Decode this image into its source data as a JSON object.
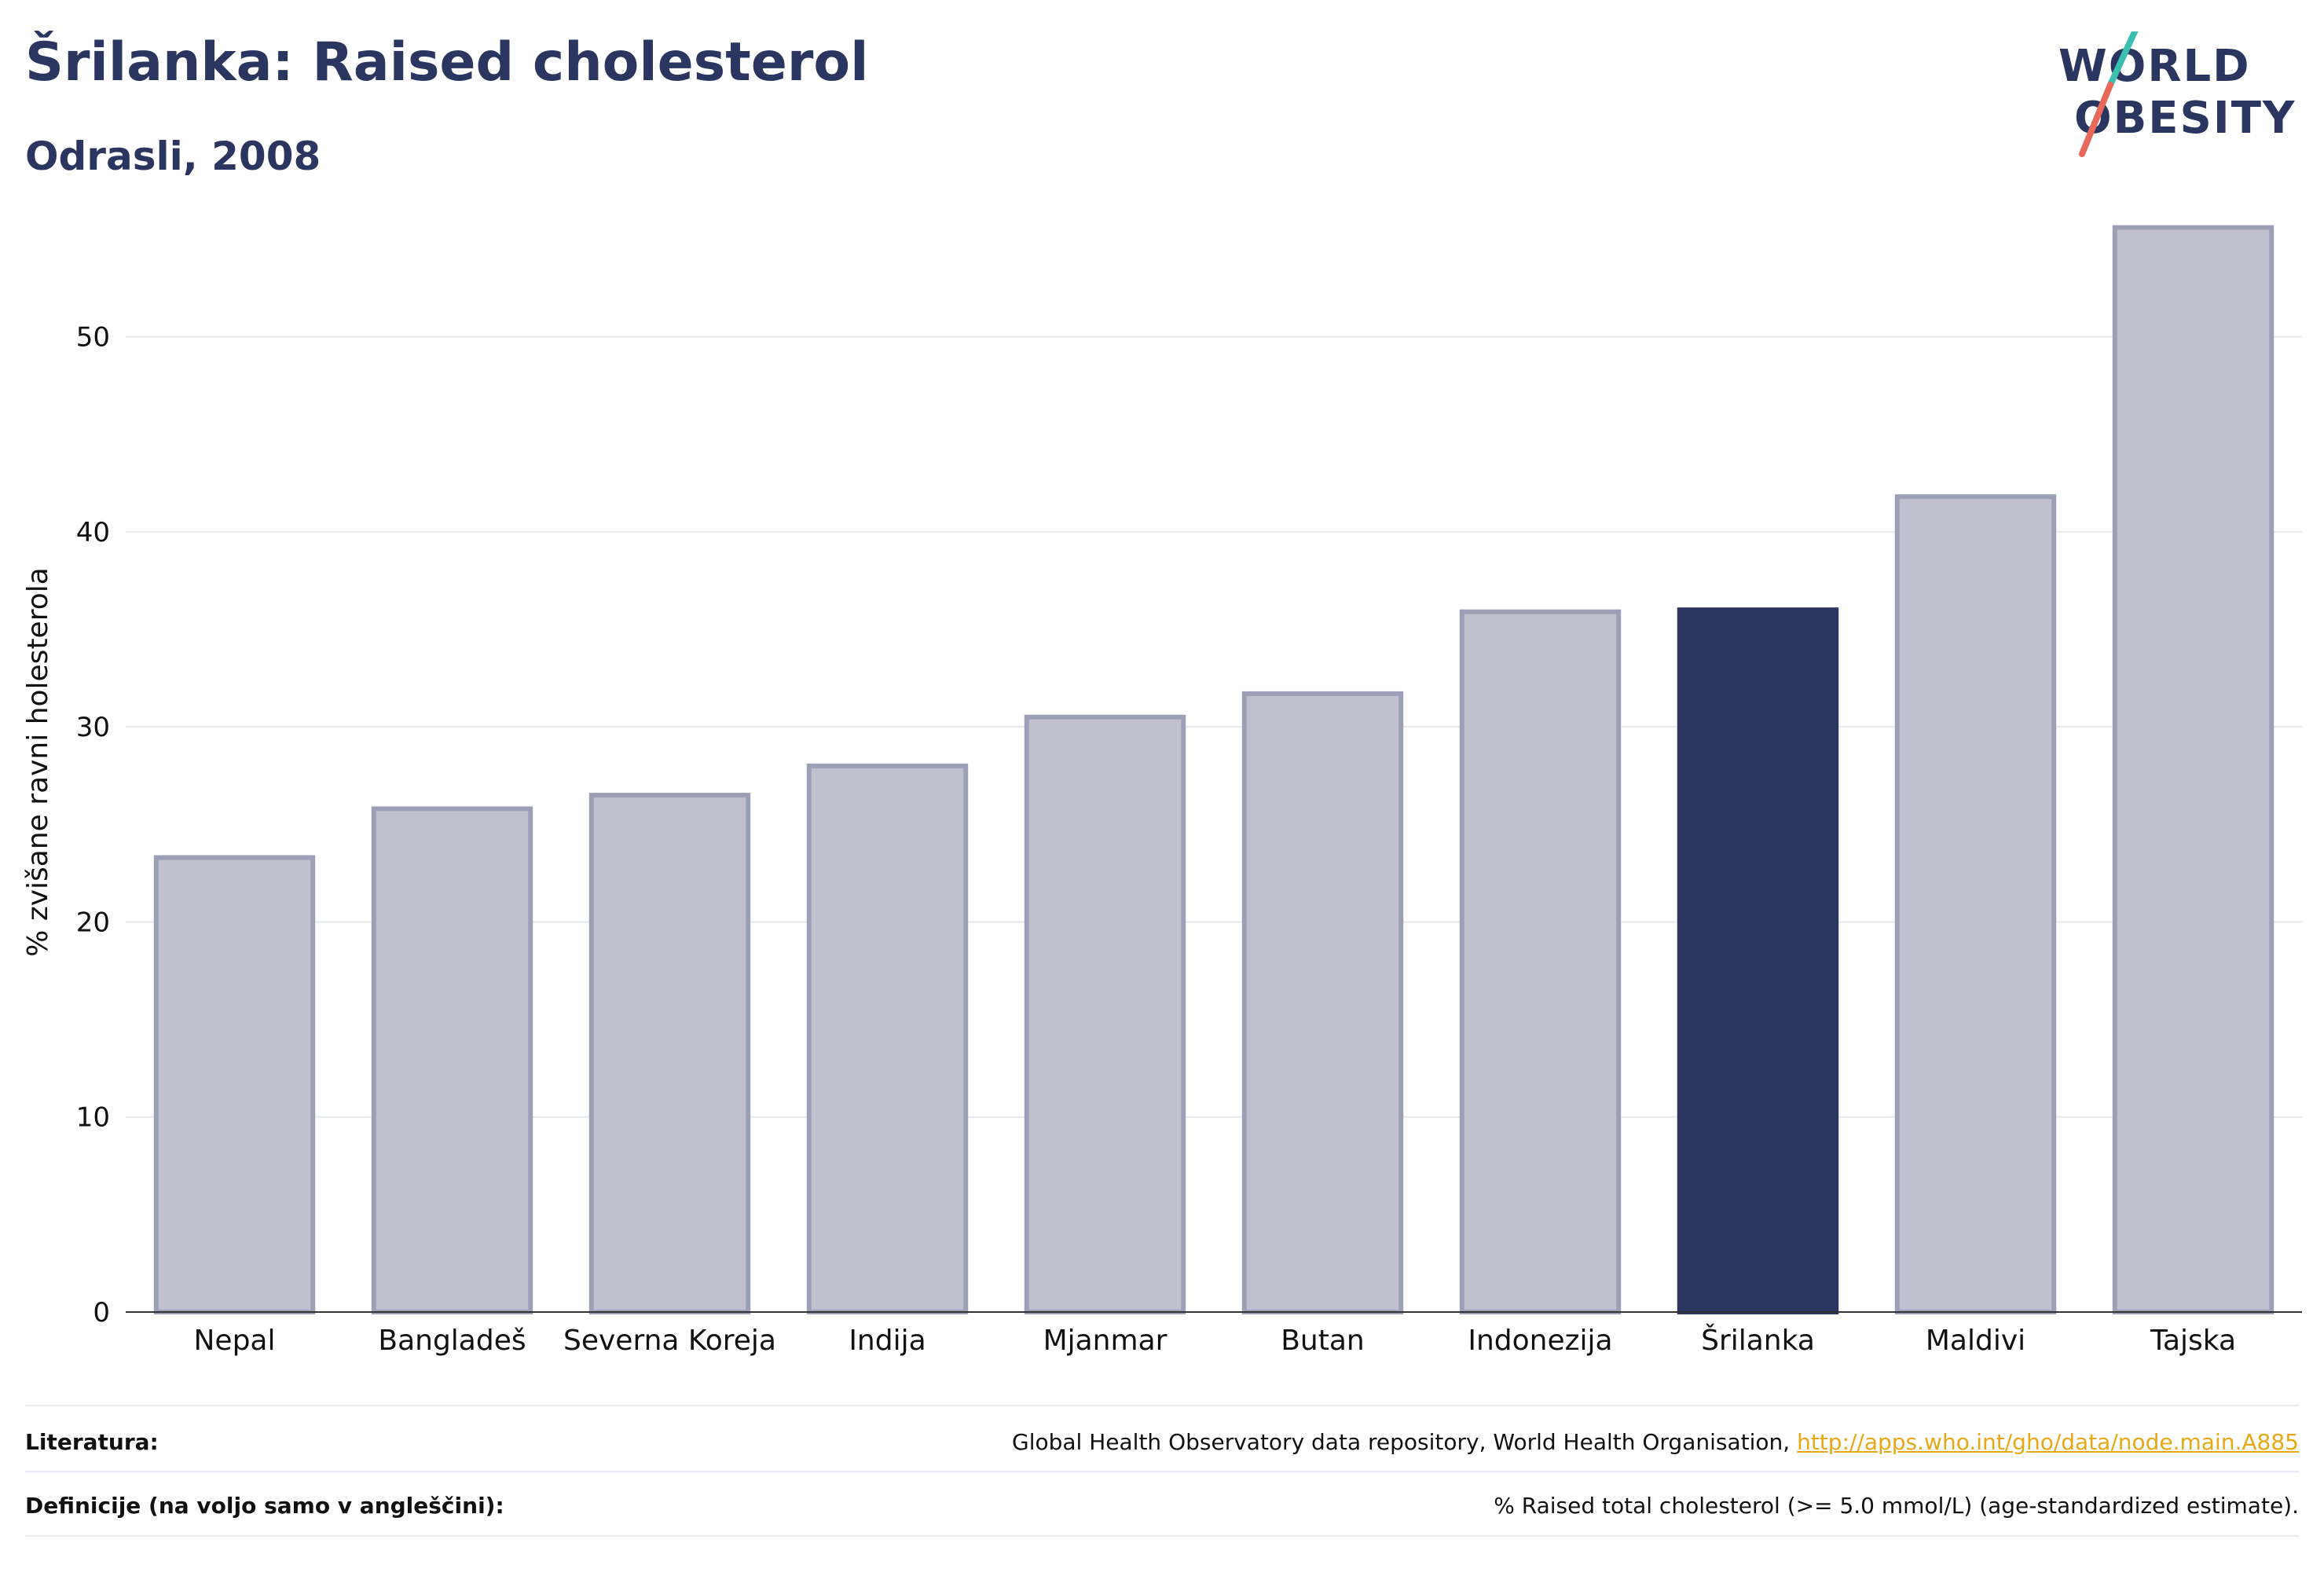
{
  "header": {
    "title": "Šrilanka: Raised cholesterol",
    "subtitle": "Odrasli, 2008"
  },
  "logo": {
    "line1": "WORLD",
    "line2": "OBESITY",
    "colors": {
      "text": "#2a3560",
      "slash_top": "#3bbfb0",
      "slash_bottom": "#e8685a"
    }
  },
  "chart_data": {
    "type": "bar",
    "categories": [
      "Nepal",
      "Bangladeš",
      "Severna Koreja",
      "Indija",
      "Mjanmar",
      "Butan",
      "Indonezija",
      "Šrilanka",
      "Maldivi",
      "Tajska"
    ],
    "values": [
      23.3,
      25.8,
      26.5,
      28.0,
      30.5,
      31.7,
      35.9,
      36.0,
      41.8,
      55.6
    ],
    "highlight": "Šrilanka",
    "ylabel": "% zvišane ravni holesterola",
    "xlabel": "",
    "ylim": [
      0,
      58
    ],
    "yticks": [
      0,
      10,
      20,
      30,
      40,
      50
    ],
    "grid": true,
    "colors": {
      "bar": "#bfc2ce",
      "bar_edge": "#9ba0b6",
      "highlight": "#2a3560"
    }
  },
  "footer": {
    "sources_label": "Literatura:",
    "sources_text": "Global Health Observatory data repository, World Health Organisation, ",
    "sources_link": "http://apps.who.int/gho/data/node.main.A885",
    "definitions_label": "Definicije (na voljo samo v angleščini):",
    "definitions_text": "% Raised total cholesterol (>= 5.0 mmol/L) (age-standardized estimate)."
  }
}
